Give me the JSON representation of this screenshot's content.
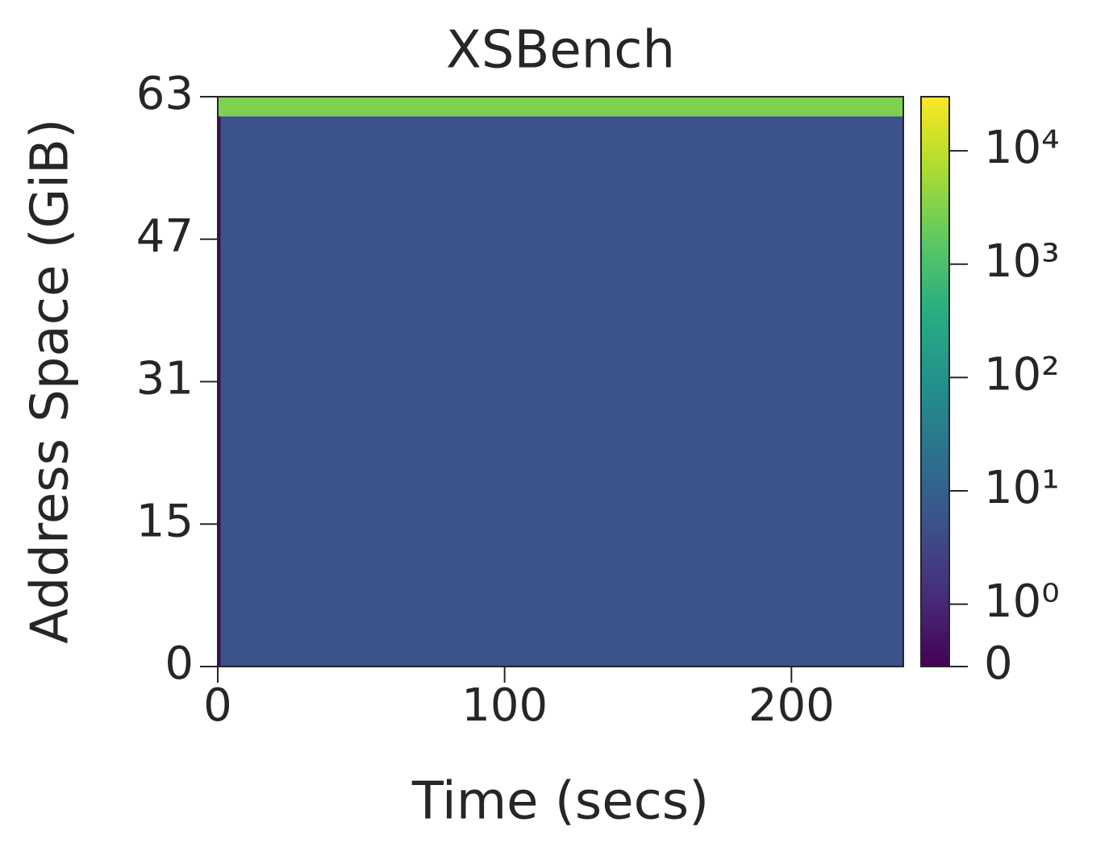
{
  "chart_data": {
    "type": "heatmap",
    "title": "XSBench",
    "x_label": "Time (secs)",
    "y_label": "Address Space (GiB)",
    "x_bins": [
      0,
      1,
      239
    ],
    "y_bins": [
      0,
      61.8,
      64
    ],
    "values": [
      [
        0,
        5
      ],
      [
        3000,
        3000
      ]
    ],
    "xlim": [
      0,
      239
    ],
    "ylim": [
      0,
      64
    ],
    "xticks": [
      0,
      100,
      200
    ],
    "yticks": [
      0,
      {
        "value": 16,
        "label": "15"
      },
      {
        "value": 32,
        "label": "31"
      },
      {
        "value": 48,
        "label": "47"
      },
      {
        "value": 64,
        "label": "63"
      }
    ],
    "colormap": "viridis",
    "color_scale": "symlog",
    "clim": [
      0,
      30000
    ],
    "cticks": [
      0,
      {
        "value": 1,
        "label": "10⁰"
      },
      {
        "value": 10,
        "label": "10¹"
      },
      {
        "value": 100,
        "label": "10²"
      },
      {
        "value": 1000,
        "label": "10³"
      },
      {
        "value": 10000,
        "label": "10⁴"
      }
    ]
  }
}
